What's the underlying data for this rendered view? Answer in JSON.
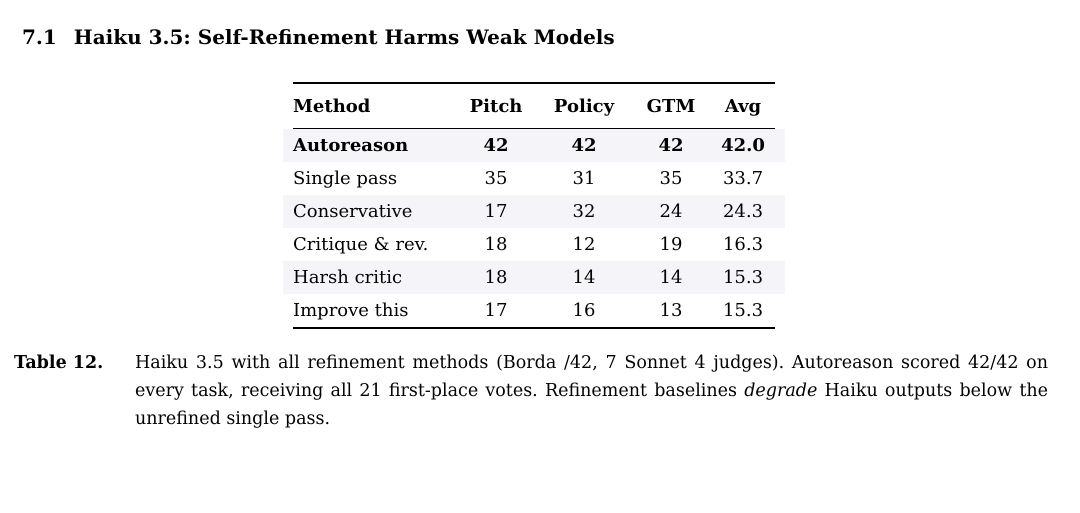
{
  "section": {
    "number": "7.1",
    "title": "Haiku 3.5: Self-Refinement Harms Weak Models"
  },
  "table": {
    "columns": [
      "Method",
      "Pitch",
      "Policy",
      "GTM",
      "Avg"
    ],
    "rows": [
      {
        "cells": [
          "Autoreason",
          "42",
          "42",
          "42",
          "42.0"
        ],
        "emphasis": true
      },
      {
        "cells": [
          "Single pass",
          "35",
          "31",
          "35",
          "33.7"
        ],
        "emphasis": false
      },
      {
        "cells": [
          "Conservative",
          "17",
          "32",
          "24",
          "24.3"
        ],
        "emphasis": false
      },
      {
        "cells": [
          "Critique & rev.",
          "18",
          "12",
          "19",
          "16.3"
        ],
        "emphasis": false
      },
      {
        "cells": [
          "Harsh critic",
          "18",
          "14",
          "14",
          "15.3"
        ],
        "emphasis": false
      },
      {
        "cells": [
          "Improve this",
          "17",
          "16",
          "13",
          "15.3"
        ],
        "emphasis": false
      }
    ]
  },
  "caption": {
    "label": "Table 12.",
    "segments": [
      {
        "text": "Haiku 3.5 with all refinement methods (Borda /42, 7 Sonnet 4 judges). Autoreason scored 42/42 on every task, receiving all 21 first-place votes. Refinement baselines ",
        "italic": false
      },
      {
        "text": "degrade",
        "italic": true
      },
      {
        "text": " Haiku outputs below the unrefined single pass.",
        "italic": false
      }
    ]
  },
  "colors": {
    "stripe": "#f5f5f9",
    "rule": "#000000",
    "page_background": "#ffffff",
    "text": "#000000"
  }
}
